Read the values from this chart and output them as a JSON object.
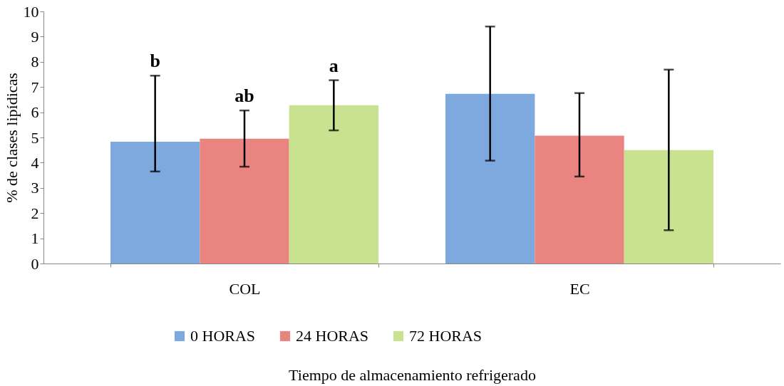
{
  "chart_data": {
    "type": "bar",
    "xlabel": "Tiempo de almacenamiento refrigerado",
    "ylabel": "% de clases lipídicas",
    "categories": [
      "COL",
      "EC"
    ],
    "series": [
      {
        "name": "0 HORAS",
        "color": "#7ea9df",
        "values": [
          4.83,
          6.73
        ],
        "errors": [
          [
            3.65,
            7.45
          ],
          [
            4.08,
            9.4
          ]
        ]
      },
      {
        "name": "24 HORAS",
        "color": "#e98480",
        "values": [
          4.95,
          5.07
        ],
        "errors": [
          [
            3.84,
            6.07
          ],
          [
            3.45,
            6.76
          ]
        ]
      },
      {
        "name": "72 HORAS",
        "color": "#c8e290",
        "values": [
          6.28,
          4.5
        ],
        "errors": [
          [
            5.28,
            7.27
          ],
          [
            1.32,
            7.69
          ]
        ]
      }
    ],
    "ylim": [
      0,
      10
    ],
    "yticks": [
      0,
      1,
      2,
      3,
      4,
      5,
      6,
      7,
      8,
      9,
      10
    ],
    "grid": false,
    "legend": "bottom",
    "annotations": [
      "b",
      "ab",
      "a"
    ]
  }
}
